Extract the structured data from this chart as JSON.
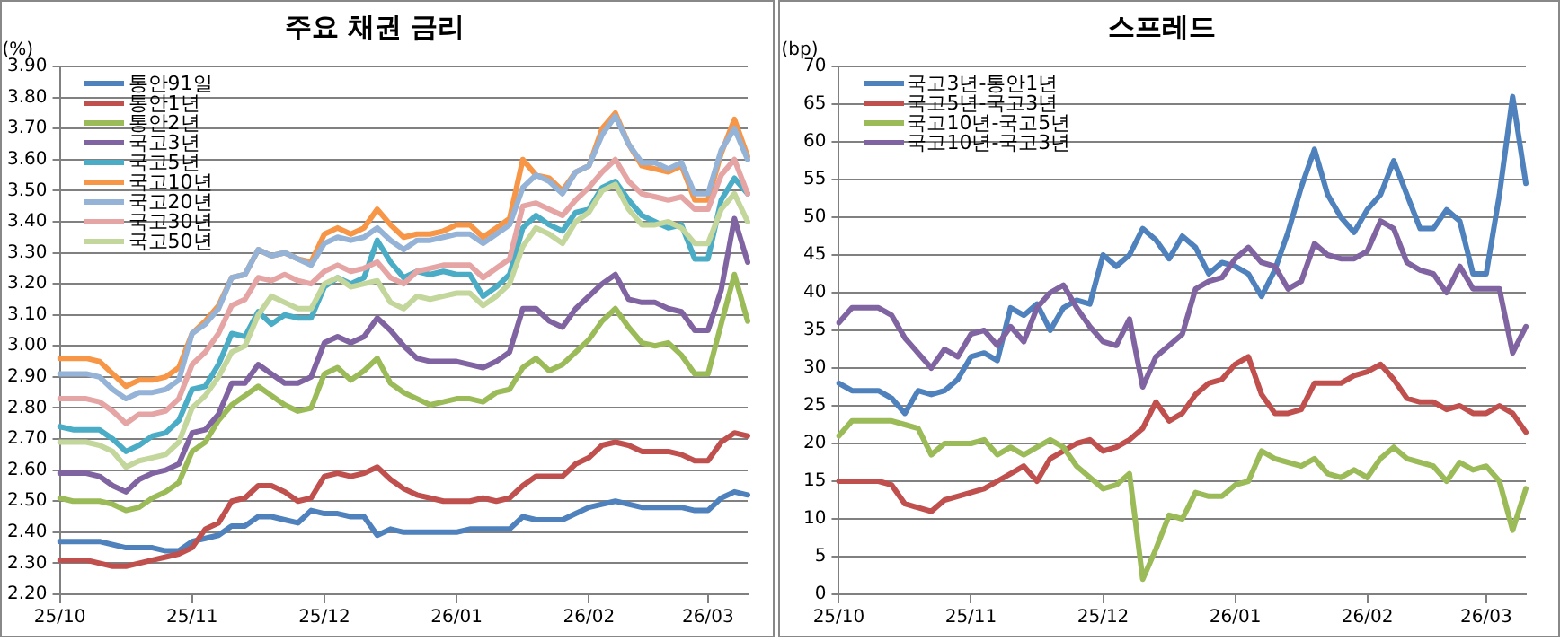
{
  "chart_data": [
    {
      "type": "line",
      "title": "주요 채권 금리",
      "ylabel": "(%)",
      "categories": [
        "25/10",
        null,
        null,
        null,
        null,
        null,
        null,
        null,
        null,
        null,
        "25/11",
        null,
        null,
        null,
        null,
        null,
        null,
        null,
        null,
        null,
        "25/12",
        null,
        null,
        null,
        null,
        null,
        null,
        null,
        null,
        null,
        "26/01",
        null,
        null,
        null,
        null,
        null,
        null,
        null,
        null,
        null,
        "26/02",
        null,
        null,
        null,
        null,
        null,
        null,
        null,
        null,
        "26/03",
        null,
        null,
        null
      ],
      "ylim": [
        2.2,
        3.9
      ],
      "yticks": [
        {
          "value": 2.2,
          "label": "2.20"
        },
        {
          "value": 2.3,
          "label": "2.30"
        },
        {
          "value": 2.4,
          "label": "2.40"
        },
        {
          "value": 2.5,
          "label": "2.50"
        },
        {
          "value": 2.6,
          "label": "2.60"
        },
        {
          "value": 2.7,
          "label": "2.70"
        },
        {
          "value": 2.8,
          "label": "2.80"
        },
        {
          "value": 2.9,
          "label": "2.90"
        },
        {
          "value": 3.0,
          "label": "3.00"
        },
        {
          "value": 3.1,
          "label": "3.10"
        },
        {
          "value": 3.2,
          "label": "3.20"
        },
        {
          "value": 3.3,
          "label": "3.30"
        },
        {
          "value": 3.4,
          "label": "3.40"
        },
        {
          "value": 3.5,
          "label": "3.50"
        },
        {
          "value": 3.6,
          "label": "3.60"
        },
        {
          "value": 3.7,
          "label": "3.70"
        },
        {
          "value": 3.8,
          "label": "3.80"
        },
        {
          "value": 3.9,
          "label": "3.90"
        }
      ],
      "grid": "y",
      "legend": "top left",
      "marker": "none",
      "series": [
        {
          "name": "통안91일",
          "color": "#4f81bd",
          "values": [
            2.37,
            2.37,
            2.37,
            2.37,
            2.36,
            2.35,
            2.35,
            2.35,
            2.34,
            2.34,
            2.37,
            2.38,
            2.39,
            2.42,
            2.42,
            2.45,
            2.45,
            2.44,
            2.43,
            2.47,
            2.46,
            2.46,
            2.45,
            2.45,
            2.39,
            2.41,
            2.4,
            2.4,
            2.4,
            2.4,
            2.4,
            2.41,
            2.41,
            2.41,
            2.41,
            2.45,
            2.44,
            2.44,
            2.44,
            2.46,
            2.48,
            2.49,
            2.5,
            2.49,
            2.48,
            2.48,
            2.48,
            2.48,
            2.47,
            2.47,
            2.51,
            2.53,
            2.52
          ]
        },
        {
          "name": "통안1년",
          "color": "#c0504d",
          "values": [
            2.31,
            2.31,
            2.31,
            2.3,
            2.29,
            2.29,
            2.3,
            2.31,
            2.32,
            2.33,
            2.35,
            2.41,
            2.43,
            2.5,
            2.51,
            2.55,
            2.55,
            2.53,
            2.5,
            2.51,
            2.58,
            2.59,
            2.58,
            2.59,
            2.61,
            2.57,
            2.54,
            2.52,
            2.51,
            2.5,
            2.5,
            2.5,
            2.51,
            2.5,
            2.51,
            2.55,
            2.58,
            2.58,
            2.58,
            2.62,
            2.64,
            2.68,
            2.69,
            2.68,
            2.66,
            2.66,
            2.66,
            2.65,
            2.63,
            2.63,
            2.69,
            2.72,
            2.71
          ]
        },
        {
          "name": "통안2년",
          "color": "#9bbb59",
          "values": [
            2.51,
            2.5,
            2.5,
            2.5,
            2.49,
            2.47,
            2.48,
            2.51,
            2.53,
            2.56,
            2.66,
            2.69,
            2.76,
            2.81,
            2.84,
            2.87,
            2.84,
            2.81,
            2.79,
            2.8,
            2.91,
            2.93,
            2.89,
            2.92,
            2.96,
            2.88,
            2.85,
            2.83,
            2.81,
            2.82,
            2.83,
            2.83,
            2.82,
            2.85,
            2.86,
            2.93,
            2.96,
            2.92,
            2.94,
            2.98,
            3.02,
            3.08,
            3.12,
            3.06,
            3.01,
            3.0,
            3.01,
            2.97,
            2.91,
            2.91,
            3.07,
            3.23,
            3.08
          ]
        },
        {
          "name": "국고3년",
          "color": "#8064a2",
          "values": [
            2.59,
            2.59,
            2.59,
            2.58,
            2.55,
            2.53,
            2.57,
            2.59,
            2.6,
            2.62,
            2.72,
            2.73,
            2.78,
            2.88,
            2.88,
            2.94,
            2.91,
            2.88,
            2.88,
            2.9,
            3.01,
            3.03,
            3.01,
            3.03,
            3.09,
            3.05,
            3.0,
            2.96,
            2.95,
            2.95,
            2.95,
            2.94,
            2.93,
            2.95,
            2.98,
            3.12,
            3.12,
            3.08,
            3.06,
            3.12,
            3.16,
            3.2,
            3.23,
            3.15,
            3.14,
            3.14,
            3.12,
            3.11,
            3.05,
            3.05,
            3.18,
            3.41,
            3.27
          ]
        },
        {
          "name": "국고5년",
          "color": "#4bacc6",
          "values": [
            2.74,
            2.73,
            2.73,
            2.73,
            2.7,
            2.66,
            2.68,
            2.71,
            2.72,
            2.76,
            2.86,
            2.87,
            2.94,
            3.04,
            3.03,
            3.11,
            3.07,
            3.1,
            3.09,
            3.09,
            3.19,
            3.22,
            3.2,
            3.22,
            3.34,
            3.27,
            3.22,
            3.24,
            3.23,
            3.24,
            3.23,
            3.23,
            3.16,
            3.19,
            3.23,
            3.38,
            3.42,
            3.39,
            3.37,
            3.43,
            3.44,
            3.51,
            3.53,
            3.47,
            3.42,
            3.4,
            3.38,
            3.39,
            3.28,
            3.28,
            3.47,
            3.54,
            3.49
          ]
        },
        {
          "name": "국고10년",
          "color": "#f79646",
          "values": [
            2.96,
            2.96,
            2.96,
            2.95,
            2.91,
            2.87,
            2.89,
            2.89,
            2.9,
            2.93,
            3.04,
            3.08,
            3.13,
            3.22,
            3.23,
            3.31,
            3.29,
            3.3,
            3.28,
            3.27,
            3.36,
            3.38,
            3.36,
            3.38,
            3.44,
            3.39,
            3.35,
            3.36,
            3.36,
            3.37,
            3.39,
            3.39,
            3.35,
            3.38,
            3.41,
            3.6,
            3.55,
            3.54,
            3.5,
            3.56,
            3.58,
            3.7,
            3.75,
            3.65,
            3.58,
            3.57,
            3.56,
            3.58,
            3.47,
            3.47,
            3.62,
            3.73,
            3.61
          ]
        },
        {
          "name": "국고20년",
          "color": "#95b3d7",
          "values": [
            2.91,
            2.91,
            2.91,
            2.9,
            2.86,
            2.83,
            2.85,
            2.85,
            2.86,
            2.89,
            3.04,
            3.07,
            3.12,
            3.22,
            3.23,
            3.31,
            3.29,
            3.3,
            3.28,
            3.26,
            3.33,
            3.35,
            3.34,
            3.35,
            3.38,
            3.34,
            3.31,
            3.34,
            3.34,
            3.35,
            3.36,
            3.36,
            3.33,
            3.36,
            3.39,
            3.51,
            3.55,
            3.53,
            3.49,
            3.56,
            3.58,
            3.68,
            3.74,
            3.65,
            3.59,
            3.59,
            3.57,
            3.59,
            3.49,
            3.49,
            3.63,
            3.7,
            3.6
          ]
        },
        {
          "name": "국고30년",
          "color": "#e6a5a5",
          "values": [
            2.83,
            2.83,
            2.83,
            2.82,
            2.79,
            2.75,
            2.78,
            2.78,
            2.79,
            2.83,
            2.94,
            2.98,
            3.04,
            3.13,
            3.15,
            3.22,
            3.21,
            3.23,
            3.21,
            3.2,
            3.24,
            3.26,
            3.24,
            3.25,
            3.27,
            3.22,
            3.2,
            3.24,
            3.25,
            3.26,
            3.26,
            3.26,
            3.22,
            3.25,
            3.28,
            3.45,
            3.46,
            3.44,
            3.42,
            3.47,
            3.51,
            3.56,
            3.6,
            3.53,
            3.49,
            3.48,
            3.47,
            3.48,
            3.44,
            3.44,
            3.55,
            3.6,
            3.49
          ]
        },
        {
          "name": "국고50년",
          "color": "#c3d69b",
          "values": [
            2.69,
            2.69,
            2.69,
            2.68,
            2.66,
            2.61,
            2.63,
            2.64,
            2.65,
            2.69,
            2.8,
            2.84,
            2.9,
            2.98,
            3.0,
            3.1,
            3.16,
            3.14,
            3.12,
            3.12,
            3.2,
            3.22,
            3.19,
            3.2,
            3.21,
            3.14,
            3.12,
            3.16,
            3.15,
            3.16,
            3.17,
            3.17,
            3.13,
            3.16,
            3.2,
            3.32,
            3.38,
            3.36,
            3.33,
            3.4,
            3.43,
            3.5,
            3.52,
            3.44,
            3.39,
            3.39,
            3.4,
            3.38,
            3.33,
            3.33,
            3.44,
            3.49,
            3.4
          ]
        }
      ]
    },
    {
      "type": "line",
      "title": "스프레드",
      "ylabel": "(bp)",
      "categories": [
        "25/10",
        null,
        null,
        null,
        null,
        null,
        null,
        null,
        null,
        null,
        "25/11",
        null,
        null,
        null,
        null,
        null,
        null,
        null,
        null,
        null,
        "25/12",
        null,
        null,
        null,
        null,
        null,
        null,
        null,
        null,
        null,
        "26/01",
        null,
        null,
        null,
        null,
        null,
        null,
        null,
        null,
        null,
        "26/02",
        null,
        null,
        null,
        null,
        null,
        null,
        null,
        null,
        "26/03",
        null,
        null,
        null
      ],
      "ylim": [
        0,
        70
      ],
      "yticks": [
        0,
        5,
        10,
        15,
        20,
        25,
        30,
        35,
        40,
        45,
        50,
        55,
        60,
        65,
        70
      ],
      "grid": "y",
      "legend": "top left",
      "marker": "none",
      "series": [
        {
          "name": "국고3년-통안1년",
          "color": "#4f81bd",
          "values": [
            28,
            27,
            27,
            27,
            26,
            24,
            27,
            26.5,
            27,
            28.5,
            31.5,
            32,
            31,
            38,
            37,
            38.5,
            35,
            38,
            39,
            38.5,
            45,
            43.5,
            45,
            48.5,
            47,
            44.5,
            47.5,
            46,
            42.5,
            44,
            43.5,
            42.5,
            39.5,
            43,
            48,
            54,
            59,
            53,
            50,
            48,
            51,
            53,
            57.5,
            53,
            48.5,
            48.5,
            51,
            49.5,
            42.5,
            42.5,
            53,
            66,
            54.5
          ]
        },
        {
          "name": "국고5년-국고3년",
          "color": "#c0504d",
          "values": [
            15,
            15,
            15,
            15,
            14.5,
            12,
            11.5,
            11,
            12.5,
            13,
            13.5,
            14,
            15,
            16,
            17,
            15,
            18,
            19,
            20,
            20.5,
            19,
            19.5,
            20.5,
            22,
            25.5,
            23,
            24,
            26.5,
            28,
            28.5,
            30.5,
            31.5,
            26.5,
            24,
            24,
            24.5,
            28,
            28,
            28,
            29,
            29.5,
            30.5,
            28.5,
            26,
            25.5,
            25.5,
            24.5,
            25,
            24,
            24,
            25,
            24,
            21.5
          ]
        },
        {
          "name": "국고10년-국고5년",
          "color": "#9bbb59",
          "values": [
            21,
            23,
            23,
            23,
            23,
            22.5,
            22,
            18.5,
            20,
            20,
            20,
            20.5,
            18.5,
            19.5,
            18.5,
            19.5,
            20.5,
            19.5,
            17,
            15.5,
            14,
            14.5,
            16,
            2,
            6,
            10.5,
            10,
            13.5,
            13,
            13,
            14.5,
            15,
            19,
            18,
            17.5,
            17,
            18,
            16,
            15.5,
            16.5,
            15.5,
            18,
            19.5,
            18,
            17.5,
            17,
            15,
            17.5,
            16.5,
            17,
            15,
            8.5,
            14
          ]
        },
        {
          "name": "국고10년-국고3년",
          "color": "#8064a2",
          "values": [
            36,
            38,
            38,
            38,
            37,
            34,
            32,
            30,
            32.5,
            31.5,
            34.5,
            35,
            33,
            35.5,
            33.5,
            38,
            40,
            41,
            38,
            35.5,
            33.5,
            33,
            36.5,
            27.5,
            31.5,
            33,
            34.5,
            40.5,
            41.5,
            42,
            44.5,
            46,
            44,
            43.5,
            40.5,
            41.5,
            46.5,
            45,
            44.5,
            44.5,
            45.5,
            49.5,
            48.5,
            44,
            43,
            42.5,
            40,
            43.5,
            40.5,
            40.5,
            40.5,
            32,
            35.5
          ]
        }
      ]
    }
  ]
}
